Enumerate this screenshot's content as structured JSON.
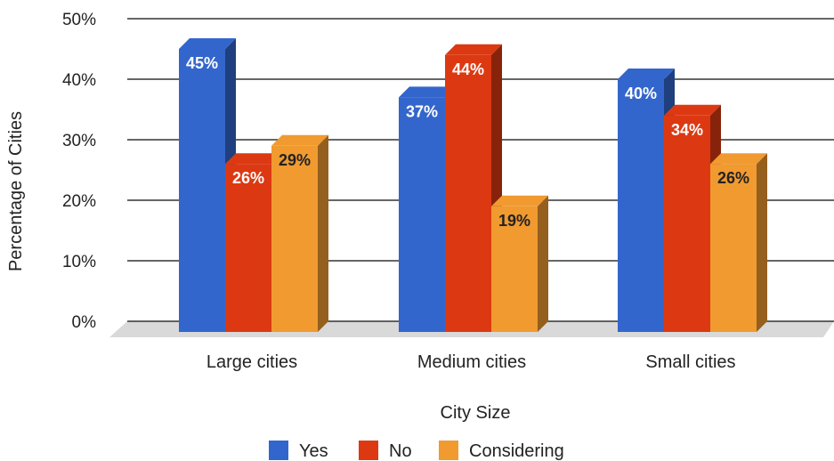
{
  "chart_data": {
    "type": "bar",
    "style": "3d-grouped",
    "categories": [
      "Large cities",
      "Medium cities",
      "Small cities"
    ],
    "series": [
      {
        "name": "Yes",
        "values": [
          45,
          37,
          40
        ],
        "color": "#3366cc",
        "label_color": "#ffffff"
      },
      {
        "name": "No",
        "values": [
          26,
          44,
          34
        ],
        "color": "#dc3912",
        "label_color": "#ffffff"
      },
      {
        "name": "Considering",
        "values": [
          29,
          19,
          26
        ],
        "color": "#f09a30",
        "label_color": "#222222"
      }
    ],
    "data_labels": [
      [
        "45%",
        "37%",
        "40%"
      ],
      [
        "26%",
        "44%",
        "34%"
      ],
      [
        "29%",
        "19%",
        "26%"
      ]
    ],
    "yticks": [
      "0%",
      "10%",
      "20%",
      "30%",
      "40%",
      "50%"
    ],
    "ylim": [
      0,
      50
    ],
    "xlabel": "City Size",
    "ylabel": "Percentage of Cities",
    "legend_position": "bottom",
    "grid": true
  }
}
